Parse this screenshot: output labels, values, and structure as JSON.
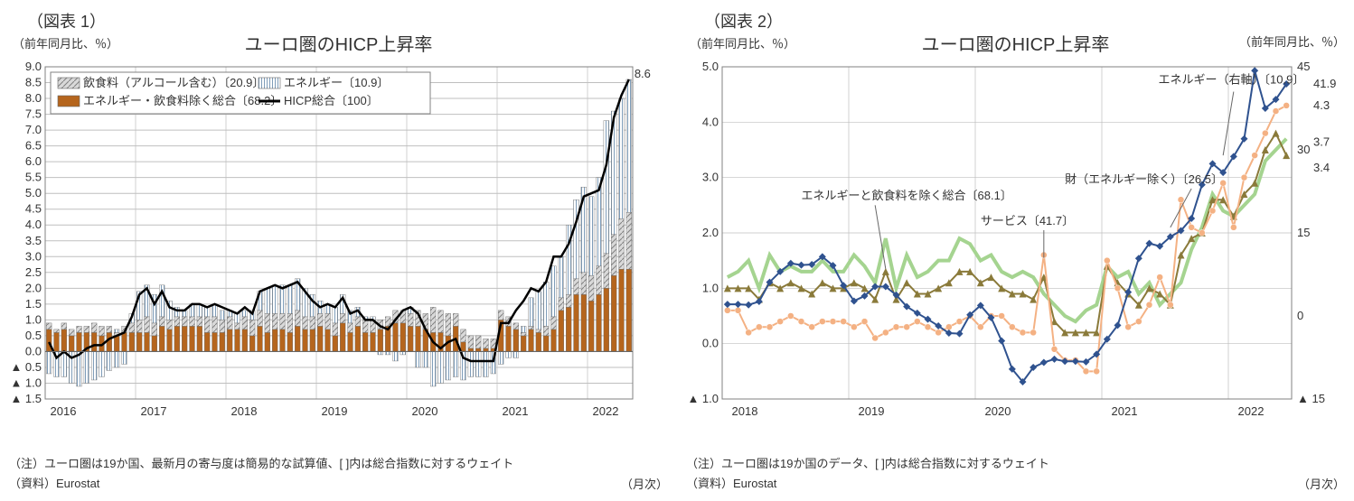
{
  "chart1": {
    "type": "stacked-bar-with-line",
    "header": "（図表 1）",
    "title": "ユーロ圏のHICP上昇率",
    "y_axis_label": "（前年同月比、％）",
    "x_unit": "（月次）",
    "note1": "（注）ユーロ圏は19か国、最新月の寄与度は簡易的な試算値、[ ]内は総合指数に対するウェイト",
    "note2": "（資料）Eurostat",
    "ylim": [
      -1.5,
      9.0
    ],
    "ytick_step": 0.5,
    "yticks": [
      -1.5,
      -1.0,
      -0.5,
      0.0,
      0.5,
      1.0,
      1.5,
      2.0,
      2.5,
      3.0,
      3.5,
      4.0,
      4.5,
      5.0,
      5.5,
      6.0,
      6.5,
      7.0,
      7.5,
      8.0,
      8.5,
      9.0
    ],
    "xticks": [
      "2016",
      "2017",
      "2018",
      "2019",
      "2020",
      "2021",
      "2022"
    ],
    "end_label": "8.6",
    "legend": {
      "food": "飲食料（アルコール含む）〔20.9〕",
      "energy": "エネルギー〔10.9〕",
      "core": "エネルギー・飲食料除く総合〔68.2〕",
      "hicp": "HICP総合〔100〕"
    },
    "colors": {
      "food_fill": "#d9d9d9",
      "food_pattern": "#808080",
      "energy_fill": "#ffffff",
      "energy_pattern": "#7f9db9",
      "core_fill": "#b5651d",
      "line": "#000000",
      "grid": "#bfbfbf",
      "border": "#808080"
    },
    "bar_width": 0.7,
    "n_months": 78,
    "core": [
      0.7,
      0.6,
      0.7,
      0.5,
      0.6,
      0.6,
      0.6,
      0.5,
      0.6,
      0.5,
      0.6,
      0.6,
      0.6,
      0.6,
      0.5,
      0.8,
      0.7,
      0.8,
      0.8,
      0.8,
      0.8,
      0.6,
      0.6,
      0.6,
      0.7,
      0.7,
      0.7,
      0.5,
      0.8,
      0.6,
      0.7,
      0.7,
      0.6,
      0.8,
      0.7,
      0.7,
      0.8,
      0.7,
      0.5,
      0.9,
      0.6,
      0.8,
      0.6,
      0.6,
      0.7,
      0.8,
      0.9,
      0.9,
      0.8,
      0.8,
      0.7,
      0.6,
      0.6,
      0.5,
      0.8,
      0.3,
      0.1,
      0.1,
      0.1,
      0.1,
      1.0,
      0.8,
      0.7,
      0.5,
      0.7,
      0.6,
      0.5,
      0.7,
      1.3,
      1.4,
      1.8,
      1.8,
      1.6,
      1.8,
      2.0,
      2.4,
      2.6,
      2.6
    ],
    "food": [
      0.2,
      0.1,
      0.2,
      0.2,
      0.2,
      0.2,
      0.3,
      0.3,
      0.2,
      0.1,
      0.2,
      0.3,
      0.4,
      0.5,
      0.4,
      0.3,
      0.3,
      0.3,
      0.3,
      0.3,
      0.3,
      0.5,
      0.5,
      0.4,
      0.4,
      0.2,
      0.4,
      0.5,
      0.5,
      0.6,
      0.5,
      0.5,
      0.6,
      0.5,
      0.4,
      0.4,
      0.4,
      0.5,
      0.4,
      0.3,
      0.3,
      0.3,
      0.4,
      0.4,
      0.3,
      0.3,
      0.4,
      0.4,
      0.4,
      0.5,
      0.5,
      0.8,
      0.7,
      0.7,
      0.4,
      0.4,
      0.4,
      0.4,
      0.3,
      0.3,
      0.3,
      0.3,
      0.2,
      0.1,
      0.1,
      0.1,
      0.3,
      0.4,
      0.4,
      0.4,
      0.5,
      0.7,
      0.8,
      0.9,
      1.1,
      1.3,
      1.6,
      1.8
    ],
    "energy_pos": [
      0,
      0,
      0,
      0,
      0,
      0,
      0,
      0,
      0,
      0.1,
      0,
      0.3,
      0.9,
      1.0,
      0.9,
      1.0,
      0.6,
      0.3,
      0.2,
      0.4,
      0.4,
      0.3,
      0.4,
      0.3,
      0.2,
      0.3,
      0.2,
      0.3,
      0.6,
      0.8,
      0.9,
      0.9,
      0.9,
      1.0,
      0.9,
      0.7,
      0.4,
      0.3,
      0.5,
      0.6,
      0.4,
      0.3,
      0.1,
      0.1,
      0,
      0,
      0,
      0,
      0.2,
      0,
      0,
      0,
      0,
      0,
      0,
      0,
      0,
      0,
      0,
      0,
      0,
      0,
      0,
      0.2,
      0.9,
      1.2,
      1.4,
      1.6,
      1.3,
      2.2,
      2.5,
      2.7,
      2.5,
      2.8,
      4.2,
      3.9,
      3.8,
      4.2
    ],
    "energy_neg": [
      -0.7,
      -0.8,
      -0.8,
      -1.0,
      -1.1,
      -1.0,
      -0.9,
      -0.8,
      -0.6,
      -0.5,
      -0.4,
      0,
      0,
      0,
      0,
      0,
      0,
      0,
      0,
      0,
      0,
      0,
      0,
      0,
      0,
      0,
      0,
      0,
      0,
      0,
      0,
      0,
      0,
      0,
      0,
      0,
      0,
      0,
      0,
      0,
      0,
      0,
      0,
      0,
      -0.1,
      -0.1,
      -0.3,
      -0.1,
      0,
      -0.5,
      -0.5,
      -1.1,
      -1.0,
      -0.9,
      -0.8,
      -0.9,
      -0.8,
      -0.8,
      -0.8,
      -0.7,
      -0.4,
      -0.2,
      -0.2,
      0,
      0,
      0,
      0,
      0,
      0,
      0,
      0,
      0,
      0,
      0,
      0,
      0,
      0,
      0
    ],
    "line_vals": [
      0.3,
      -0.2,
      0.0,
      -0.2,
      -0.1,
      0.1,
      0.2,
      0.2,
      0.4,
      0.5,
      0.6,
      1.1,
      1.8,
      2.0,
      1.5,
      1.9,
      1.4,
      1.3,
      1.3,
      1.5,
      1.5,
      1.4,
      1.5,
      1.4,
      1.3,
      1.2,
      1.4,
      1.2,
      1.9,
      2.0,
      2.1,
      2.0,
      2.1,
      2.2,
      1.9,
      1.6,
      1.4,
      1.5,
      1.4,
      1.7,
      1.2,
      1.3,
      1.0,
      1.0,
      0.8,
      0.7,
      1.0,
      1.3,
      1.4,
      1.2,
      0.7,
      0.3,
      0.1,
      0.3,
      0.4,
      -0.2,
      -0.3,
      -0.3,
      -0.3,
      -0.3,
      0.9,
      0.9,
      1.3,
      1.6,
      2.0,
      1.9,
      2.2,
      3.0,
      3.0,
      3.4,
      4.1,
      4.9,
      5.0,
      5.1,
      5.9,
      7.4,
      8.1,
      8.6
    ]
  },
  "chart2": {
    "type": "multi-line-dual-axis",
    "header": "（図表 2）",
    "title": "ユーロ圏のHICP上昇率",
    "y_axis_label": "（前年同月比、％）",
    "y_axis_label_r": "（前年同月比、％）",
    "x_unit": "（月次）",
    "note1": "（注）ユーロ圏は19か国のデータ、[ ]内は総合指数に対するウェイト",
    "note2": "（資料）Eurostat",
    "ylim_left": [
      -1.0,
      5.0
    ],
    "ylim_right": [
      -15,
      45
    ],
    "yticks_left": [
      -1.0,
      0.0,
      1.0,
      2.0,
      3.0,
      4.0,
      5.0
    ],
    "yticks_right": [
      -15,
      0,
      15,
      30,
      45
    ],
    "xticks": [
      "2018",
      "2019",
      "2020",
      "2021",
      "2022"
    ],
    "n_months": 54,
    "series_labels": {
      "core": "エネルギーと飲食料を除く総合〔68.1〕",
      "services": "サービス〔41.7〕",
      "goods": "財（エネルギー除く）〔26.5〕",
      "energy": "エネルギー（右軸）〔10.9〕"
    },
    "end_labels": {
      "energy": "41.9",
      "goods": "4.3",
      "services": "3.7",
      "core": "3.4"
    },
    "colors": {
      "core": "#8a7a3a",
      "services": "#a5d490",
      "goods": "#f4b183",
      "energy": "#2f528f",
      "grid": "#bfbfbf",
      "border": "#808080"
    },
    "linewidths": {
      "core": 2,
      "services": 4,
      "goods": 2,
      "energy": 2
    },
    "markers": {
      "core": "triangle",
      "services": "none",
      "goods": "circle",
      "energy": "diamond"
    },
    "core_vals": [
      1.0,
      1.0,
      1.0,
      0.8,
      1.1,
      1.0,
      1.1,
      1.0,
      0.9,
      1.1,
      1.0,
      1.0,
      1.1,
      1.0,
      0.8,
      1.3,
      0.8,
      1.1,
      0.9,
      0.9,
      1.0,
      1.1,
      1.3,
      1.3,
      1.1,
      1.2,
      1.0,
      0.9,
      0.9,
      0.8,
      1.2,
      0.4,
      0.2,
      0.2,
      0.2,
      0.2,
      1.4,
      1.1,
      0.9,
      0.7,
      1.0,
      0.9,
      0.7,
      1.6,
      1.9,
      2.0,
      2.6,
      2.6,
      2.3,
      2.7,
      2.9,
      3.5,
      3.8,
      3.4
    ],
    "services_vals": [
      1.2,
      1.3,
      1.5,
      1.0,
      1.6,
      1.3,
      1.4,
      1.3,
      1.3,
      1.5,
      1.3,
      1.3,
      1.6,
      1.4,
      1.1,
      1.9,
      1.0,
      1.6,
      1.2,
      1.3,
      1.5,
      1.5,
      1.9,
      1.8,
      1.5,
      1.6,
      1.3,
      1.2,
      1.3,
      1.2,
      0.9,
      0.7,
      0.5,
      0.4,
      0.6,
      0.7,
      1.4,
      1.2,
      1.3,
      0.9,
      1.1,
      0.7,
      0.9,
      1.1,
      1.7,
      2.1,
      2.7,
      2.4,
      2.3,
      2.5,
      2.7,
      3.3,
      3.5,
      3.7
    ],
    "goods_vals": [
      0.6,
      0.6,
      0.2,
      0.3,
      0.3,
      0.4,
      0.5,
      0.4,
      0.3,
      0.4,
      0.4,
      0.4,
      0.3,
      0.4,
      0.1,
      0.2,
      0.3,
      0.3,
      0.4,
      0.3,
      0.2,
      0.3,
      0.4,
      0.5,
      0.3,
      0.5,
      0.5,
      0.3,
      0.2,
      0.2,
      1.6,
      -0.1,
      -0.3,
      -0.3,
      -0.5,
      -0.5,
      1.5,
      1.0,
      0.3,
      0.4,
      0.7,
      1.2,
      0.7,
      2.6,
      2.1,
      2.0,
      2.4,
      2.9,
      2.1,
      3.0,
      3.4,
      3.8,
      4.2,
      4.3
    ],
    "energy_vals": [
      2.1,
      2.1,
      2.0,
      2.6,
      6.1,
      8.0,
      9.5,
      9.2,
      9.3,
      10.7,
      9.1,
      5.5,
      2.7,
      3.6,
      5.3,
      5.3,
      3.8,
      1.7,
      0.5,
      -0.6,
      -1.8,
      -3.1,
      -3.2,
      0.2,
      1.9,
      -0.3,
      -4.5,
      -9.6,
      -11.9,
      -9.3,
      -8.4,
      -7.8,
      -8.2,
      -8.2,
      -8.3,
      -6.9,
      -4.2,
      -1.7,
      4.3,
      10.4,
      13.1,
      12.6,
      14.3,
      15.4,
      17.6,
      23.7,
      27.5,
      25.9,
      28.8,
      32.0,
      44.3,
      37.5,
      39.1,
      41.9
    ]
  }
}
